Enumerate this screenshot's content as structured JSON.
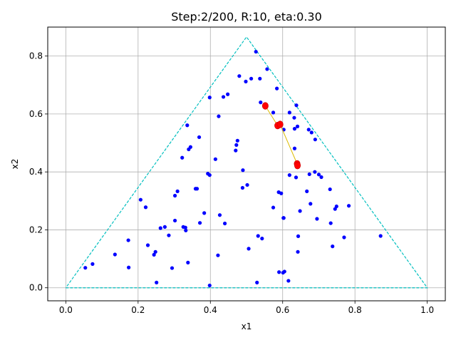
{
  "chart_data": {
    "type": "scatter",
    "title": "Step:2/200, R:10, eta:0.30",
    "xlabel": "x1",
    "ylabel": "x2",
    "xlim": [
      -0.05,
      1.05
    ],
    "ylim": [
      -0.045,
      0.9
    ],
    "x_ticks": [
      0.0,
      0.2,
      0.4,
      0.6,
      0.8,
      1.0
    ],
    "x_tick_labels": [
      "0.0",
      "0.2",
      "0.4",
      "0.6",
      "0.8",
      "1.0"
    ],
    "y_ticks": [
      0.0,
      0.2,
      0.4,
      0.6,
      0.8
    ],
    "y_tick_labels": [
      "0.0",
      "0.2",
      "0.4",
      "0.6",
      "0.8"
    ],
    "grid": true,
    "colors": {
      "points": "#0000ff",
      "highlight": "#ff0000",
      "trajectory": "#ddbb00",
      "triangle": "#00bfbf",
      "grid": "#b0b0b0"
    },
    "triangle": [
      [
        0.0,
        0.0
      ],
      [
        1.0,
        0.0
      ],
      [
        0.5,
        0.866
      ],
      [
        0.0,
        0.0
      ]
    ],
    "points": [
      [
        0.526,
        0.815
      ],
      [
        0.557,
        0.755
      ],
      [
        0.48,
        0.731
      ],
      [
        0.513,
        0.722
      ],
      [
        0.537,
        0.722
      ],
      [
        0.498,
        0.712
      ],
      [
        0.584,
        0.688
      ],
      [
        0.448,
        0.668
      ],
      [
        0.436,
        0.659
      ],
      [
        0.398,
        0.657
      ],
      [
        0.539,
        0.64
      ],
      [
        0.638,
        0.63
      ],
      [
        0.574,
        0.605
      ],
      [
        0.619,
        0.605
      ],
      [
        0.423,
        0.592
      ],
      [
        0.632,
        0.587
      ],
      [
        0.336,
        0.561
      ],
      [
        0.641,
        0.557
      ],
      [
        0.633,
        0.549
      ],
      [
        0.603,
        0.546
      ],
      [
        0.672,
        0.546
      ],
      [
        0.68,
        0.536
      ],
      [
        0.369,
        0.52
      ],
      [
        0.69,
        0.512
      ],
      [
        0.475,
        0.508
      ],
      [
        0.472,
        0.493
      ],
      [
        0.345,
        0.486
      ],
      [
        0.34,
        0.478
      ],
      [
        0.47,
        0.474
      ],
      [
        0.322,
        0.449
      ],
      [
        0.414,
        0.444
      ],
      [
        0.633,
        0.481
      ],
      [
        0.689,
        0.4
      ],
      [
        0.7,
        0.391
      ],
      [
        0.674,
        0.392
      ],
      [
        0.619,
        0.389
      ],
      [
        0.707,
        0.382
      ],
      [
        0.637,
        0.381
      ],
      [
        0.49,
        0.406
      ],
      [
        0.393,
        0.394
      ],
      [
        0.398,
        0.389
      ],
      [
        0.502,
        0.355
      ],
      [
        0.489,
        0.345
      ],
      [
        0.359,
        0.342
      ],
      [
        0.363,
        0.342
      ],
      [
        0.667,
        0.333
      ],
      [
        0.731,
        0.34
      ],
      [
        0.309,
        0.333
      ],
      [
        0.589,
        0.33
      ],
      [
        0.596,
        0.326
      ],
      [
        0.302,
        0.318
      ],
      [
        0.207,
        0.304
      ],
      [
        0.677,
        0.29
      ],
      [
        0.783,
        0.283
      ],
      [
        0.749,
        0.281
      ],
      [
        0.574,
        0.277
      ],
      [
        0.221,
        0.278
      ],
      [
        0.745,
        0.272
      ],
      [
        0.648,
        0.265
      ],
      [
        0.383,
        0.258
      ],
      [
        0.426,
        0.251
      ],
      [
        0.602,
        0.241
      ],
      [
        0.603,
        0.241
      ],
      [
        0.695,
        0.238
      ],
      [
        0.302,
        0.232
      ],
      [
        0.371,
        0.224
      ],
      [
        0.44,
        0.222
      ],
      [
        0.733,
        0.223
      ],
      [
        0.262,
        0.206
      ],
      [
        0.274,
        0.21
      ],
      [
        0.325,
        0.21
      ],
      [
        0.331,
        0.208
      ],
      [
        0.332,
        0.198
      ],
      [
        0.285,
        0.181
      ],
      [
        0.532,
        0.179
      ],
      [
        0.643,
        0.178
      ],
      [
        0.77,
        0.174
      ],
      [
        0.871,
        0.179
      ],
      [
        0.543,
        0.17
      ],
      [
        0.173,
        0.164
      ],
      [
        0.227,
        0.147
      ],
      [
        0.738,
        0.143
      ],
      [
        0.506,
        0.135
      ],
      [
        0.642,
        0.124
      ],
      [
        0.248,
        0.124
      ],
      [
        0.244,
        0.114
      ],
      [
        0.136,
        0.115
      ],
      [
        0.421,
        0.112
      ],
      [
        0.338,
        0.087
      ],
      [
        0.074,
        0.082
      ],
      [
        0.174,
        0.07
      ],
      [
        0.054,
        0.069
      ],
      [
        0.294,
        0.068
      ],
      [
        0.59,
        0.054
      ],
      [
        0.601,
        0.052
      ],
      [
        0.605,
        0.056
      ],
      [
        0.616,
        0.024
      ],
      [
        0.251,
        0.018
      ],
      [
        0.529,
        0.018
      ],
      [
        0.398,
        0.008
      ]
    ],
    "trajectory": [
      [
        0.552,
        0.628
      ],
      [
        0.586,
        0.56
      ],
      [
        0.593,
        0.564
      ],
      [
        0.64,
        0.428
      ],
      [
        0.641,
        0.422
      ]
    ],
    "highlighted": [
      [
        0.552,
        0.628
      ],
      [
        0.586,
        0.56
      ],
      [
        0.593,
        0.564
      ],
      [
        0.64,
        0.428
      ],
      [
        0.641,
        0.422
      ]
    ]
  }
}
